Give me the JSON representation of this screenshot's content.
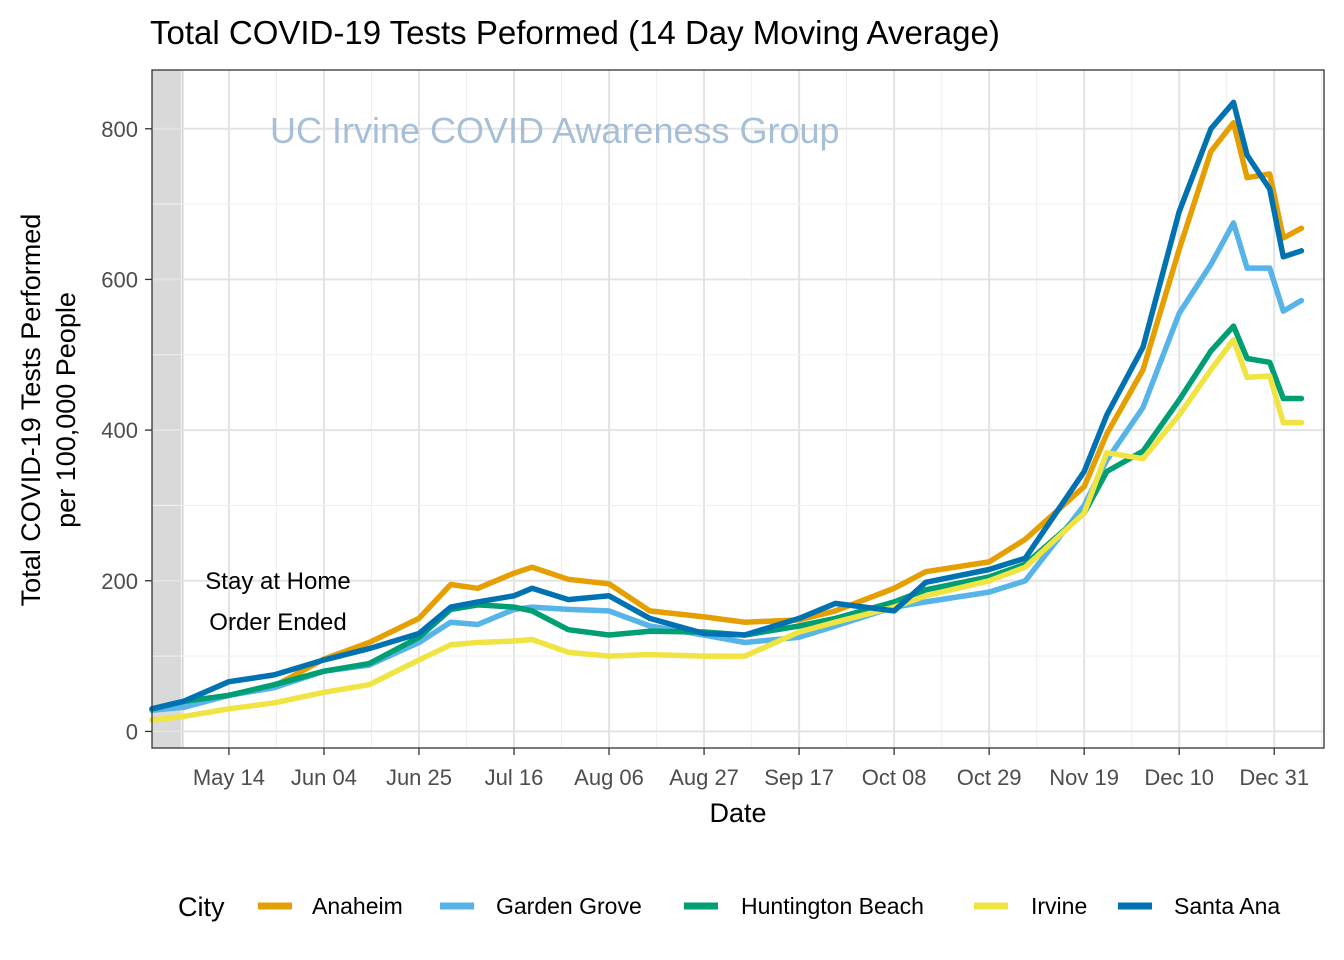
{
  "chart_data": {
    "type": "line",
    "title": "Total COVID-19  Tests Peformed (14 Day Moving Average)",
    "watermark": "UC Irvine COVID Awareness Group",
    "xlabel": "Date",
    "ylabel_lines": [
      "Total COVID-19 Tests Performed",
      "per 100,000 People"
    ],
    "x_tick_labels": [
      "May 14",
      "Jun 04",
      "Jun 25",
      "Jul 16",
      "Aug 06",
      "Aug 27",
      "Sep 17",
      "Oct 08",
      "Oct 29",
      "Nov 19",
      "Dec 10",
      "Dec 31"
    ],
    "x_tick_dates": [
      "2020-05-14",
      "2020-06-04",
      "2020-06-25",
      "2020-07-16",
      "2020-08-06",
      "2020-08-27",
      "2020-09-17",
      "2020-10-08",
      "2020-10-29",
      "2020-11-19",
      "2020-12-10",
      "2020-12-31"
    ],
    "xlim": [
      "2020-04-27",
      "2021-01-11"
    ],
    "y_ticks": [
      0,
      200,
      400,
      600,
      800
    ],
    "ylim": [
      -22,
      878
    ],
    "grid": true,
    "shaded_region": {
      "start": "2020-04-27",
      "end": "2020-05-04",
      "color": "#d9d9d9"
    },
    "annotation_lines": [
      "Stay at Home",
      "Order Ended"
    ],
    "legend": {
      "title": "City",
      "position": "bottom"
    },
    "series": [
      {
        "name": "Anaheim",
        "color": "#E69F00",
        "points": [
          [
            "2020-04-27",
            28
          ],
          [
            "2020-05-04",
            36
          ],
          [
            "2020-05-14",
            48
          ],
          [
            "2020-05-24",
            60
          ],
          [
            "2020-06-04",
            96
          ],
          [
            "2020-06-14",
            118
          ],
          [
            "2020-06-25",
            150
          ],
          [
            "2020-07-02",
            195
          ],
          [
            "2020-07-08",
            190
          ],
          [
            "2020-07-16",
            210
          ],
          [
            "2020-07-20",
            218
          ],
          [
            "2020-07-28",
            202
          ],
          [
            "2020-08-06",
            196
          ],
          [
            "2020-08-15",
            160
          ],
          [
            "2020-08-27",
            152
          ],
          [
            "2020-09-05",
            145
          ],
          [
            "2020-09-17",
            148
          ],
          [
            "2020-09-25",
            160
          ],
          [
            "2020-10-08",
            190
          ],
          [
            "2020-10-15",
            212
          ],
          [
            "2020-10-29",
            225
          ],
          [
            "2020-11-06",
            255
          ],
          [
            "2020-11-19",
            325
          ],
          [
            "2020-11-24",
            395
          ],
          [
            "2020-12-02",
            480
          ],
          [
            "2020-12-10",
            640
          ],
          [
            "2020-12-17",
            770
          ],
          [
            "2020-12-22",
            808
          ],
          [
            "2020-12-25",
            735
          ],
          [
            "2020-12-30",
            740
          ],
          [
            "2021-01-02",
            655
          ],
          [
            "2021-01-06",
            668
          ]
        ]
      },
      {
        "name": "Garden Grove",
        "color": "#56B4E9",
        "points": [
          [
            "2020-04-27",
            28
          ],
          [
            "2020-05-04",
            32
          ],
          [
            "2020-05-14",
            48
          ],
          [
            "2020-05-24",
            58
          ],
          [
            "2020-06-04",
            80
          ],
          [
            "2020-06-14",
            88
          ],
          [
            "2020-06-25",
            118
          ],
          [
            "2020-07-02",
            145
          ],
          [
            "2020-07-08",
            142
          ],
          [
            "2020-07-16",
            162
          ],
          [
            "2020-07-20",
            165
          ],
          [
            "2020-07-28",
            162
          ],
          [
            "2020-08-06",
            160
          ],
          [
            "2020-08-15",
            140
          ],
          [
            "2020-08-27",
            128
          ],
          [
            "2020-09-05",
            118
          ],
          [
            "2020-09-17",
            125
          ],
          [
            "2020-09-25",
            140
          ],
          [
            "2020-10-08",
            165
          ],
          [
            "2020-10-15",
            172
          ],
          [
            "2020-10-29",
            185
          ],
          [
            "2020-11-06",
            200
          ],
          [
            "2020-11-19",
            300
          ],
          [
            "2020-11-24",
            360
          ],
          [
            "2020-12-02",
            430
          ],
          [
            "2020-12-10",
            555
          ],
          [
            "2020-12-17",
            620
          ],
          [
            "2020-12-22",
            675
          ],
          [
            "2020-12-25",
            615
          ],
          [
            "2020-12-30",
            615
          ],
          [
            "2021-01-02",
            558
          ],
          [
            "2021-01-06",
            572
          ]
        ]
      },
      {
        "name": "Huntington Beach",
        "color": "#009E73",
        "points": [
          [
            "2020-04-27",
            30
          ],
          [
            "2020-05-04",
            40
          ],
          [
            "2020-05-14",
            48
          ],
          [
            "2020-05-24",
            62
          ],
          [
            "2020-06-04",
            80
          ],
          [
            "2020-06-14",
            90
          ],
          [
            "2020-06-25",
            125
          ],
          [
            "2020-07-02",
            162
          ],
          [
            "2020-07-08",
            168
          ],
          [
            "2020-07-16",
            165
          ],
          [
            "2020-07-20",
            160
          ],
          [
            "2020-07-28",
            135
          ],
          [
            "2020-08-06",
            128
          ],
          [
            "2020-08-15",
            133
          ],
          [
            "2020-08-27",
            132
          ],
          [
            "2020-09-05",
            128
          ],
          [
            "2020-09-17",
            140
          ],
          [
            "2020-09-25",
            150
          ],
          [
            "2020-10-08",
            172
          ],
          [
            "2020-10-15",
            188
          ],
          [
            "2020-10-29",
            205
          ],
          [
            "2020-11-06",
            222
          ],
          [
            "2020-11-19",
            290
          ],
          [
            "2020-11-24",
            345
          ],
          [
            "2020-12-02",
            372
          ],
          [
            "2020-12-10",
            440
          ],
          [
            "2020-12-17",
            505
          ],
          [
            "2020-12-22",
            538
          ],
          [
            "2020-12-25",
            495
          ],
          [
            "2020-12-30",
            490
          ],
          [
            "2021-01-02",
            442
          ],
          [
            "2021-01-06",
            442
          ]
        ]
      },
      {
        "name": "Irvine",
        "color": "#F0E442",
        "points": [
          [
            "2020-04-27",
            15
          ],
          [
            "2020-05-04",
            20
          ],
          [
            "2020-05-14",
            30
          ],
          [
            "2020-05-24",
            38
          ],
          [
            "2020-06-04",
            52
          ],
          [
            "2020-06-14",
            62
          ],
          [
            "2020-06-25",
            95
          ],
          [
            "2020-07-02",
            115
          ],
          [
            "2020-07-08",
            118
          ],
          [
            "2020-07-16",
            120
          ],
          [
            "2020-07-20",
            122
          ],
          [
            "2020-07-28",
            105
          ],
          [
            "2020-08-06",
            100
          ],
          [
            "2020-08-15",
            102
          ],
          [
            "2020-08-27",
            100
          ],
          [
            "2020-09-05",
            100
          ],
          [
            "2020-09-17",
            132
          ],
          [
            "2020-09-25",
            145
          ],
          [
            "2020-10-08",
            165
          ],
          [
            "2020-10-15",
            180
          ],
          [
            "2020-10-29",
            200
          ],
          [
            "2020-11-06",
            218
          ],
          [
            "2020-11-19",
            290
          ],
          [
            "2020-11-24",
            370
          ],
          [
            "2020-12-02",
            362
          ],
          [
            "2020-12-10",
            420
          ],
          [
            "2020-12-17",
            480
          ],
          [
            "2020-12-22",
            520
          ],
          [
            "2020-12-25",
            470
          ],
          [
            "2020-12-30",
            472
          ],
          [
            "2021-01-02",
            410
          ],
          [
            "2021-01-06",
            410
          ]
        ]
      },
      {
        "name": "Santa Ana",
        "color": "#0072B2",
        "points": [
          [
            "2020-04-27",
            30
          ],
          [
            "2020-05-04",
            40
          ],
          [
            "2020-05-14",
            66
          ],
          [
            "2020-05-24",
            75
          ],
          [
            "2020-06-04",
            95
          ],
          [
            "2020-06-14",
            110
          ],
          [
            "2020-06-25",
            130
          ],
          [
            "2020-07-02",
            165
          ],
          [
            "2020-07-08",
            172
          ],
          [
            "2020-07-16",
            180
          ],
          [
            "2020-07-20",
            190
          ],
          [
            "2020-07-28",
            175
          ],
          [
            "2020-08-06",
            180
          ],
          [
            "2020-08-15",
            150
          ],
          [
            "2020-08-27",
            130
          ],
          [
            "2020-09-05",
            128
          ],
          [
            "2020-09-17",
            150
          ],
          [
            "2020-09-25",
            170
          ],
          [
            "2020-10-08",
            160
          ],
          [
            "2020-10-15",
            198
          ],
          [
            "2020-10-29",
            215
          ],
          [
            "2020-11-06",
            230
          ],
          [
            "2020-11-19",
            345
          ],
          [
            "2020-11-24",
            420
          ],
          [
            "2020-12-02",
            510
          ],
          [
            "2020-12-10",
            690
          ],
          [
            "2020-12-17",
            800
          ],
          [
            "2020-12-22",
            835
          ],
          [
            "2020-12-25",
            765
          ],
          [
            "2020-12-30",
            720
          ],
          [
            "2021-01-02",
            630
          ],
          [
            "2021-01-06",
            638
          ]
        ]
      }
    ]
  }
}
